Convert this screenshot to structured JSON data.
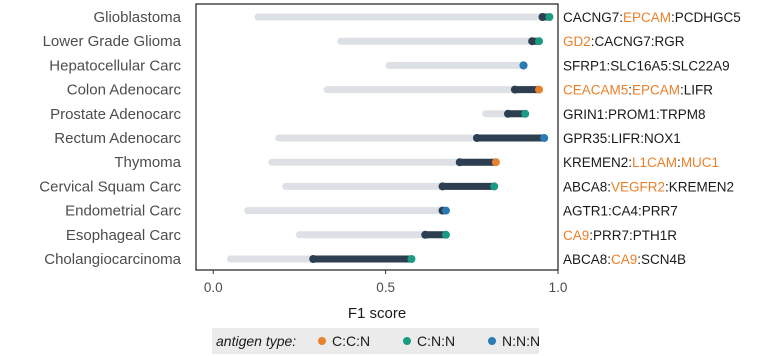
{
  "chart_data": {
    "type": "dumbbell",
    "xlabel": "F1 score",
    "xlim": [
      -0.05,
      1.0
    ],
    "xticks": [
      "0.0",
      "0.5",
      "1.0"
    ],
    "xtick_values": [
      0.0,
      0.5,
      1.0
    ],
    "grid": false,
    "legend_placement": "bottom",
    "colors": {
      "range_bar": "#dde1e5",
      "best_segment": "#2c3e50",
      "C:C:N": "#e9812b",
      "C:N:N": "#1a9b82",
      "N:N:N": "#2a7ab4",
      "highlight_text": "#e9812b"
    },
    "rows": [
      {
        "category": "Glioblastoma",
        "min": 0.13,
        "second": 0.955,
        "best": 0.975,
        "antigen_type": "C:N:N",
        "combo": [
          {
            "text": "CACNG7",
            "hl": false
          },
          {
            "text": ":",
            "hl": false
          },
          {
            "text": "EPCAM",
            "hl": true
          },
          {
            "text": ":PCDHGC5",
            "hl": false
          }
        ]
      },
      {
        "category": "Lower Grade Glioma",
        "min": 0.37,
        "second": 0.925,
        "best": 0.945,
        "antigen_type": "C:N:N",
        "combo": [
          {
            "text": "GD2",
            "hl": true
          },
          {
            "text": ":CACNG7:RGR",
            "hl": false
          }
        ]
      },
      {
        "category": "Hepatocellular Carc",
        "min": 0.51,
        "second": 0.9,
        "best": 0.9,
        "antigen_type": "N:N:N",
        "combo": [
          {
            "text": "SFRP1:SLC16A5:SLC22A9",
            "hl": false
          }
        ]
      },
      {
        "category": "Colon Adenocarc",
        "min": 0.33,
        "second": 0.875,
        "best": 0.945,
        "antigen_type": "C:C:N",
        "combo": [
          {
            "text": "CEACAM5",
            "hl": true
          },
          {
            "text": ":",
            "hl": false
          },
          {
            "text": "EPCAM",
            "hl": true
          },
          {
            "text": ":LIFR",
            "hl": false
          }
        ]
      },
      {
        "category": "Prostate Adenocarc",
        "min": 0.79,
        "second": 0.855,
        "best": 0.905,
        "antigen_type": "C:N:N",
        "combo": [
          {
            "text": "GRIN1:PROM1:TRPM8",
            "hl": false
          }
        ]
      },
      {
        "category": "Rectum Adenocarc",
        "min": 0.19,
        "second": 0.765,
        "best": 0.96,
        "antigen_type": "N:N:N",
        "combo": [
          {
            "text": "GPR35:LIFR:NOX1",
            "hl": false
          }
        ]
      },
      {
        "category": "Thymoma",
        "min": 0.17,
        "second": 0.715,
        "best": 0.82,
        "antigen_type": "C:C:N",
        "combo": [
          {
            "text": "KREMEN2:",
            "hl": false
          },
          {
            "text": "L1CAM",
            "hl": true
          },
          {
            "text": ":",
            "hl": false
          },
          {
            "text": "MUC1",
            "hl": true
          }
        ]
      },
      {
        "category": "Cervical Squam Carc",
        "min": 0.21,
        "second": 0.665,
        "best": 0.815,
        "antigen_type": "C:N:N",
        "combo": [
          {
            "text": "ABCA8:",
            "hl": false
          },
          {
            "text": "VEGFR2",
            "hl": true
          },
          {
            "text": ":KREMEN2",
            "hl": false
          }
        ]
      },
      {
        "category": "Endometrial Carc",
        "min": 0.1,
        "second": 0.665,
        "best": 0.675,
        "antigen_type": "N:N:N",
        "combo": [
          {
            "text": "AGTR1:CA4:PRR7",
            "hl": false
          }
        ]
      },
      {
        "category": "Esophageal Carc",
        "min": 0.25,
        "second": 0.615,
        "best": 0.675,
        "antigen_type": "C:N:N",
        "combo": [
          {
            "text": "CA9",
            "hl": true
          },
          {
            "text": ":PRR7:PTH1R",
            "hl": false
          }
        ]
      },
      {
        "category": "Cholangiocarcinoma",
        "min": 0.05,
        "second": 0.29,
        "best": 0.575,
        "antigen_type": "C:N:N",
        "combo": [
          {
            "text": "ABCA8:",
            "hl": false
          },
          {
            "text": "CA9",
            "hl": true
          },
          {
            "text": ":SCN4B",
            "hl": false
          }
        ]
      }
    ]
  },
  "legend": {
    "title": "antigen type:",
    "items": [
      {
        "label": "C:C:N",
        "color": "#e9812b"
      },
      {
        "label": "C:N:N",
        "color": "#1a9b82"
      },
      {
        "label": "N:N:N",
        "color": "#2a7ab4"
      }
    ]
  }
}
